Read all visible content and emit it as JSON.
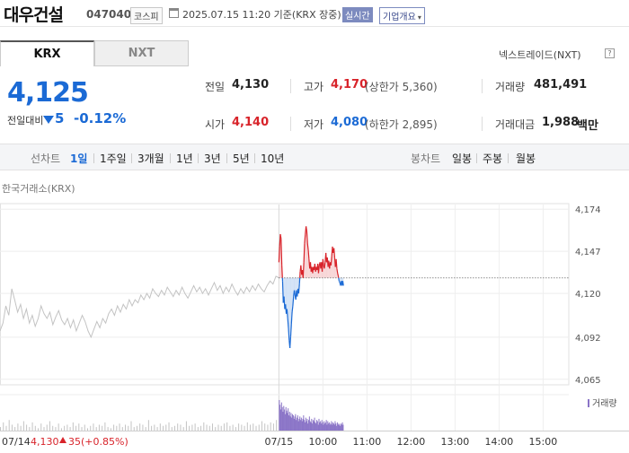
{
  "header": {
    "title": "대우건설",
    "code": "047040",
    "market": "코스피",
    "datetime": "2025.07.15 11:20 기준(KRX 장중)",
    "realtime": "실시간",
    "company_info": "기업개요"
  },
  "tabs": [
    {
      "label": "KRX",
      "active": true
    },
    {
      "label": "NXT",
      "active": false
    }
  ],
  "nextrade_label": "넥스트레이드(NXT)",
  "quote": {
    "price": "4,125",
    "change_label": "전일대비",
    "change_value": "5",
    "change_pct": "-0.12%",
    "direction": "down"
  },
  "stats": {
    "prev_close": {
      "label": "전일",
      "value": "4,130"
    },
    "high": {
      "label": "고가",
      "value": "4,170",
      "sub": "(상한가 5,360)"
    },
    "volume": {
      "label": "거래량",
      "value": "481,491"
    },
    "open": {
      "label": "시가",
      "value": "4,140"
    },
    "low": {
      "label": "저가",
      "value": "4,080",
      "sub": "(하한가 2,895)"
    },
    "amount": {
      "label": "거래대금",
      "value": "1,988",
      "unit": "백만"
    }
  },
  "range_bar": {
    "line_label": "선차트",
    "line_ranges": [
      "1일",
      "1주일",
      "3개월",
      "1년",
      "3년",
      "5년",
      "10년"
    ],
    "active_range": "1일",
    "candle_label": "봉차트",
    "candle_ranges": [
      "일봉",
      "주봉",
      "월봉"
    ]
  },
  "chart_data": {
    "type": "line",
    "title": "한국거래소(KRX)",
    "yticks": [
      4174,
      4147,
      4120,
      4092,
      4065
    ],
    "ytick_labels": [
      "4,174",
      "4,147",
      "4,120",
      "4,092",
      "4,065"
    ],
    "ylim": [
      4062,
      4177
    ],
    "baseline": 4130,
    "x_domain_minutes": [
      -380,
      395
    ],
    "xticks": [
      {
        "label": "07/15",
        "t": 0
      },
      {
        "label": "10:00",
        "t": 60
      },
      {
        "label": "11:00",
        "t": 120
      },
      {
        "label": "12:00",
        "t": 180
      },
      {
        "label": "13:00",
        "t": 240
      },
      {
        "label": "14:00",
        "t": 300
      },
      {
        "label": "15:00",
        "t": 360
      }
    ],
    "prev_day": {
      "date_label": "07/14",
      "close": "4,130",
      "change": "35",
      "change_pct": "(+0.85%)",
      "series": [
        [
          -380,
          4096
        ],
        [
          -376,
          4101
        ],
        [
          -372,
          4112
        ],
        [
          -368,
          4106
        ],
        [
          -364,
          4123
        ],
        [
          -360,
          4116
        ],
        [
          -356,
          4108
        ],
        [
          -352,
          4113
        ],
        [
          -348,
          4104
        ],
        [
          -344,
          4110
        ],
        [
          -340,
          4101
        ],
        [
          -336,
          4106
        ],
        [
          -332,
          4099
        ],
        [
          -328,
          4104
        ],
        [
          -324,
          4112
        ],
        [
          -320,
          4107
        ],
        [
          -316,
          4104
        ],
        [
          -312,
          4108
        ],
        [
          -308,
          4100
        ],
        [
          -304,
          4105
        ],
        [
          -300,
          4109
        ],
        [
          -296,
          4103
        ],
        [
          -292,
          4100
        ],
        [
          -288,
          4104
        ],
        [
          -284,
          4098
        ],
        [
          -280,
          4103
        ],
        [
          -276,
          4096
        ],
        [
          -272,
          4101
        ],
        [
          -268,
          4106
        ],
        [
          -264,
          4102
        ],
        [
          -260,
          4096
        ],
        [
          -256,
          4092
        ],
        [
          -252,
          4097
        ],
        [
          -248,
          4102
        ],
        [
          -244,
          4098
        ],
        [
          -240,
          4104
        ],
        [
          -236,
          4101
        ],
        [
          -232,
          4107
        ],
        [
          -228,
          4110
        ],
        [
          -224,
          4106
        ],
        [
          -220,
          4112
        ],
        [
          -216,
          4108
        ],
        [
          -212,
          4113
        ],
        [
          -208,
          4110
        ],
        [
          -204,
          4116
        ],
        [
          -200,
          4112
        ],
        [
          -196,
          4116
        ],
        [
          -192,
          4114
        ],
        [
          -188,
          4119
        ],
        [
          -184,
          4116
        ],
        [
          -180,
          4120
        ],
        [
          -176,
          4117
        ],
        [
          -172,
          4123
        ],
        [
          -168,
          4120
        ],
        [
          -164,
          4118
        ],
        [
          -160,
          4122
        ],
        [
          -156,
          4119
        ],
        [
          -152,
          4124
        ],
        [
          -148,
          4121
        ],
        [
          -144,
          4118
        ],
        [
          -140,
          4122
        ],
        [
          -136,
          4119
        ],
        [
          -132,
          4124
        ],
        [
          -128,
          4120
        ],
        [
          -124,
          4117
        ],
        [
          -120,
          4121
        ],
        [
          -116,
          4125
        ],
        [
          -112,
          4121
        ],
        [
          -108,
          4124
        ],
        [
          -104,
          4120
        ],
        [
          -100,
          4123
        ],
        [
          -96,
          4119
        ],
        [
          -92,
          4123
        ],
        [
          -88,
          4127
        ],
        [
          -84,
          4122
        ],
        [
          -80,
          4125
        ],
        [
          -76,
          4120
        ],
        [
          -72,
          4124
        ],
        [
          -68,
          4121
        ],
        [
          -64,
          4126
        ],
        [
          -60,
          4122
        ],
        [
          -56,
          4119
        ],
        [
          -52,
          4123
        ],
        [
          -48,
          4120
        ],
        [
          -44,
          4124
        ],
        [
          -40,
          4121
        ],
        [
          -36,
          4125
        ],
        [
          -32,
          4122
        ],
        [
          -28,
          4126
        ],
        [
          -24,
          4123
        ],
        [
          -20,
          4121
        ],
        [
          -16,
          4125
        ],
        [
          -12,
          4128
        ],
        [
          -8,
          4126
        ],
        [
          -4,
          4131
        ],
        [
          0,
          4130
        ]
      ]
    },
    "today": {
      "series": [
        [
          0,
          4140
        ],
        [
          1,
          4150
        ],
        [
          2,
          4158
        ],
        [
          3,
          4155
        ],
        [
          4,
          4138
        ],
        [
          5,
          4128
        ],
        [
          6,
          4114
        ],
        [
          7,
          4118
        ],
        [
          8,
          4110
        ],
        [
          9,
          4113
        ],
        [
          10,
          4107
        ],
        [
          11,
          4110
        ],
        [
          12,
          4104
        ],
        [
          13,
          4098
        ],
        [
          14,
          4090
        ],
        [
          15,
          4085
        ],
        [
          16,
          4092
        ],
        [
          17,
          4100
        ],
        [
          18,
          4108
        ],
        [
          19,
          4112
        ],
        [
          20,
          4118
        ],
        [
          21,
          4122
        ],
        [
          22,
          4119
        ],
        [
          23,
          4116
        ],
        [
          24,
          4122
        ],
        [
          25,
          4118
        ],
        [
          26,
          4123
        ],
        [
          27,
          4120
        ],
        [
          28,
          4126
        ],
        [
          29,
          4134
        ],
        [
          30,
          4138
        ],
        [
          31,
          4132
        ],
        [
          32,
          4135
        ],
        [
          33,
          4130
        ],
        [
          34,
          4140
        ],
        [
          35,
          4152
        ],
        [
          36,
          4158
        ],
        [
          37,
          4163
        ],
        [
          38,
          4160
        ],
        [
          39,
          4152
        ],
        [
          40,
          4148
        ],
        [
          41,
          4142
        ],
        [
          42,
          4136
        ],
        [
          43,
          4140
        ],
        [
          44,
          4134
        ],
        [
          45,
          4137
        ],
        [
          46,
          4133
        ],
        [
          47,
          4137
        ],
        [
          48,
          4135
        ],
        [
          49,
          4139
        ],
        [
          50,
          4134
        ],
        [
          51,
          4137
        ],
        [
          52,
          4135
        ],
        [
          53,
          4139
        ],
        [
          54,
          4133
        ],
        [
          55,
          4138
        ],
        [
          56,
          4140
        ],
        [
          57,
          4136
        ],
        [
          58,
          4140
        ],
        [
          59,
          4134
        ],
        [
          60,
          4142
        ],
        [
          61,
          4138
        ],
        [
          62,
          4136
        ],
        [
          63,
          4140
        ],
        [
          64,
          4146
        ],
        [
          65,
          4140
        ],
        [
          66,
          4143
        ],
        [
          67,
          4137
        ],
        [
          68,
          4141
        ],
        [
          69,
          4136
        ],
        [
          70,
          4140
        ],
        [
          71,
          4138
        ],
        [
          72,
          4144
        ],
        [
          73,
          4150
        ],
        [
          74,
          4146
        ],
        [
          75,
          4149
        ],
        [
          76,
          4143
        ],
        [
          77,
          4137
        ],
        [
          78,
          4142
        ],
        [
          79,
          4136
        ],
        [
          80,
          4133
        ],
        [
          81,
          4131
        ],
        [
          82,
          4128
        ],
        [
          83,
          4127
        ],
        [
          84,
          4125
        ],
        [
          85,
          4128
        ],
        [
          86,
          4125
        ],
        [
          87,
          4128
        ],
        [
          88,
          4125
        ]
      ]
    },
    "volume_label": "거래량",
    "volume_prev": [
      3,
      7,
      4,
      9,
      5,
      3,
      6,
      4,
      8,
      5,
      3,
      7,
      4,
      2,
      6,
      3,
      5,
      8,
      4,
      3,
      6,
      2,
      4,
      5,
      3,
      7,
      4,
      6,
      3,
      5,
      2,
      4,
      6,
      3,
      5,
      4,
      7,
      3,
      2,
      5,
      4,
      6,
      3,
      5,
      4,
      8,
      3,
      4,
      6,
      5,
      3,
      9,
      4,
      5,
      3,
      6,
      4,
      5,
      7,
      3,
      4,
      6,
      5,
      3,
      8,
      4,
      5,
      6,
      3,
      4,
      7,
      5,
      4,
      6,
      3,
      5,
      4,
      6,
      7,
      4,
      5,
      3,
      6,
      5,
      4,
      7,
      5,
      6,
      4,
      5,
      8,
      6,
      5,
      7,
      6,
      9
    ],
    "volume_today": [
      26,
      22,
      18,
      24,
      20,
      16,
      21,
      18,
      14,
      20,
      17,
      15,
      19,
      13,
      16,
      12,
      15,
      11,
      14,
      13,
      10,
      12,
      14,
      9,
      11,
      13,
      8,
      10,
      12,
      9,
      11,
      8,
      10,
      13,
      9,
      7,
      11,
      8,
      10,
      6,
      9,
      12,
      8,
      7,
      10,
      6,
      9,
      8,
      11,
      7,
      6,
      9,
      8,
      5,
      10,
      7,
      8,
      6,
      9,
      7,
      5,
      8,
      6,
      7,
      9,
      5,
      8,
      6,
      7,
      5,
      6,
      8,
      5,
      7,
      6,
      5,
      8,
      6,
      4,
      7,
      5,
      6,
      5,
      4,
      6,
      5,
      7,
      5
    ]
  },
  "colors": {
    "up": "#d8232a",
    "down": "#1b6ad5",
    "prev_line": "#c3c3c3",
    "up_fill": "#f7d3d4",
    "down_fill": "#cfe0f6",
    "volume_prev": "#c4c4c4",
    "volume_today": "#8a74c7"
  }
}
